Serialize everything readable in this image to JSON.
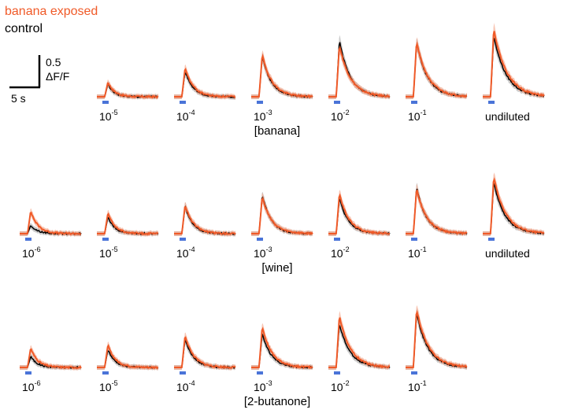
{
  "legend": {
    "exposed_label": "banana exposed",
    "control_label": "control"
  },
  "scalebar": {
    "y_value": "0.5",
    "y_unit": "ΔF/F",
    "x_label": "5 s"
  },
  "colors": {
    "exposed": "#f05a28",
    "exposed_band": "#f5a78c",
    "control": "#000000",
    "control_band": "#bdbdbd",
    "stimulus": "#4a74d8"
  },
  "chart_data": [
    {
      "type": "line",
      "title": "[banana]",
      "series_names": [
        "banana exposed",
        "control"
      ],
      "panels": [
        {
          "base": "10",
          "exp": "-5",
          "exposed_peak": 0.23,
          "control_peak": 0.2
        },
        {
          "base": "10",
          "exp": "-4",
          "exposed_peak": 0.45,
          "control_peak": 0.4
        },
        {
          "base": "10",
          "exp": "-3",
          "exposed_peak": 0.65,
          "control_peak": 0.63
        },
        {
          "base": "10",
          "exp": "-2",
          "exposed_peak": 0.8,
          "control_peak": 0.88
        },
        {
          "base": "10",
          "exp": "-1",
          "exposed_peak": 0.85,
          "control_peak": 0.85
        },
        {
          "label": "undiluted",
          "exposed_peak": 1.05,
          "control_peak": 0.95
        }
      ]
    },
    {
      "type": "line",
      "title": "[wine]",
      "series_names": [
        "banana exposed",
        "control"
      ],
      "panels": [
        {
          "base": "10",
          "exp": "-6",
          "exposed_peak": 0.35,
          "control_peak": 0.13
        },
        {
          "base": "10",
          "exp": "-5",
          "exposed_peak": 0.32,
          "control_peak": 0.26
        },
        {
          "base": "10",
          "exp": "-4",
          "exposed_peak": 0.45,
          "control_peak": 0.43
        },
        {
          "base": "10",
          "exp": "-3",
          "exposed_peak": 0.58,
          "control_peak": 0.6
        },
        {
          "base": "10",
          "exp": "-2",
          "exposed_peak": 0.62,
          "control_peak": 0.55
        },
        {
          "base": "10",
          "exp": "-1",
          "exposed_peak": 0.7,
          "control_peak": 0.72
        },
        {
          "label": "undiluted",
          "exposed_peak": 0.88,
          "control_peak": 0.8
        }
      ]
    },
    {
      "type": "line",
      "title": "[2-butanone]",
      "series_names": [
        "banana exposed",
        "control"
      ],
      "panels": [
        {
          "base": "10",
          "exp": "-6",
          "exposed_peak": 0.3,
          "control_peak": 0.17
        },
        {
          "base": "10",
          "exp": "-5",
          "exposed_peak": 0.35,
          "control_peak": 0.28
        },
        {
          "base": "10",
          "exp": "-4",
          "exposed_peak": 0.5,
          "control_peak": 0.45
        },
        {
          "base": "10",
          "exp": "-3",
          "exposed_peak": 0.63,
          "control_peak": 0.52
        },
        {
          "base": "10",
          "exp": "-2",
          "exposed_peak": 0.8,
          "control_peak": 0.68
        },
        {
          "base": "10",
          "exp": "-1",
          "exposed_peak": 0.9,
          "control_peak": 0.85
        }
      ]
    }
  ]
}
